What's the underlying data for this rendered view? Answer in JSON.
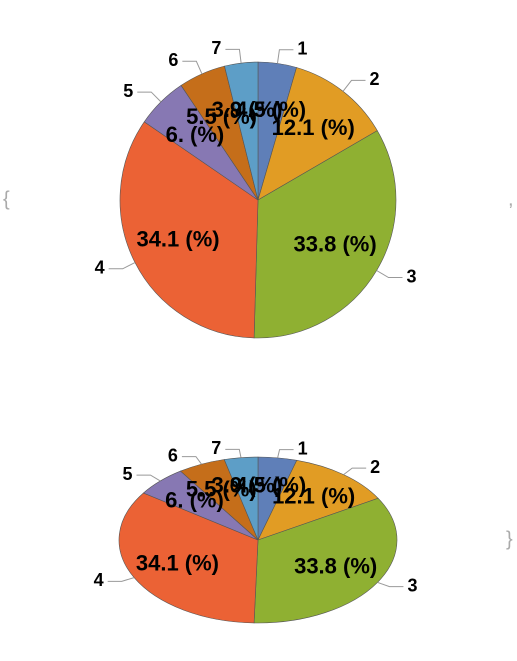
{
  "delimiters": {
    "open": "{",
    "separator": ",",
    "close": "}"
  },
  "chart_data": [
    {
      "type": "pie",
      "categories": [
        "1",
        "2",
        "3",
        "4",
        "5",
        "6",
        "7"
      ],
      "values": [
        4.5,
        12.1,
        33.8,
        34.1,
        6,
        5.5,
        3.9
      ],
      "value_labels": [
        "4.5 (%)",
        "12.1 (%)",
        "33.8 (%)",
        "34.1 (%)",
        "6. (%)",
        "5.5 (%)",
        "3.9 (%)"
      ],
      "colors": [
        "#5f7fb8",
        "#e19c24",
        "#8fb032",
        "#eb6235",
        "#8778b3",
        "#c56e1a",
        "#5d9ec7"
      ]
    },
    {
      "type": "pie",
      "categories": [
        "1",
        "2",
        "3",
        "4",
        "5",
        "6",
        "7"
      ],
      "values": [
        4.5,
        12.1,
        33.8,
        34.1,
        6,
        5.5,
        3.9
      ],
      "value_labels": [
        "4.5 (%)",
        "12.1 (%)",
        "33.8 (%)",
        "34.1 (%)",
        "6. (%)",
        "5.5 (%)",
        "3.9 (%)"
      ],
      "colors": [
        "#5f7fb8",
        "#e19c24",
        "#8fb032",
        "#eb6235",
        "#8778b3",
        "#c56e1a",
        "#5d9ec7"
      ]
    }
  ]
}
